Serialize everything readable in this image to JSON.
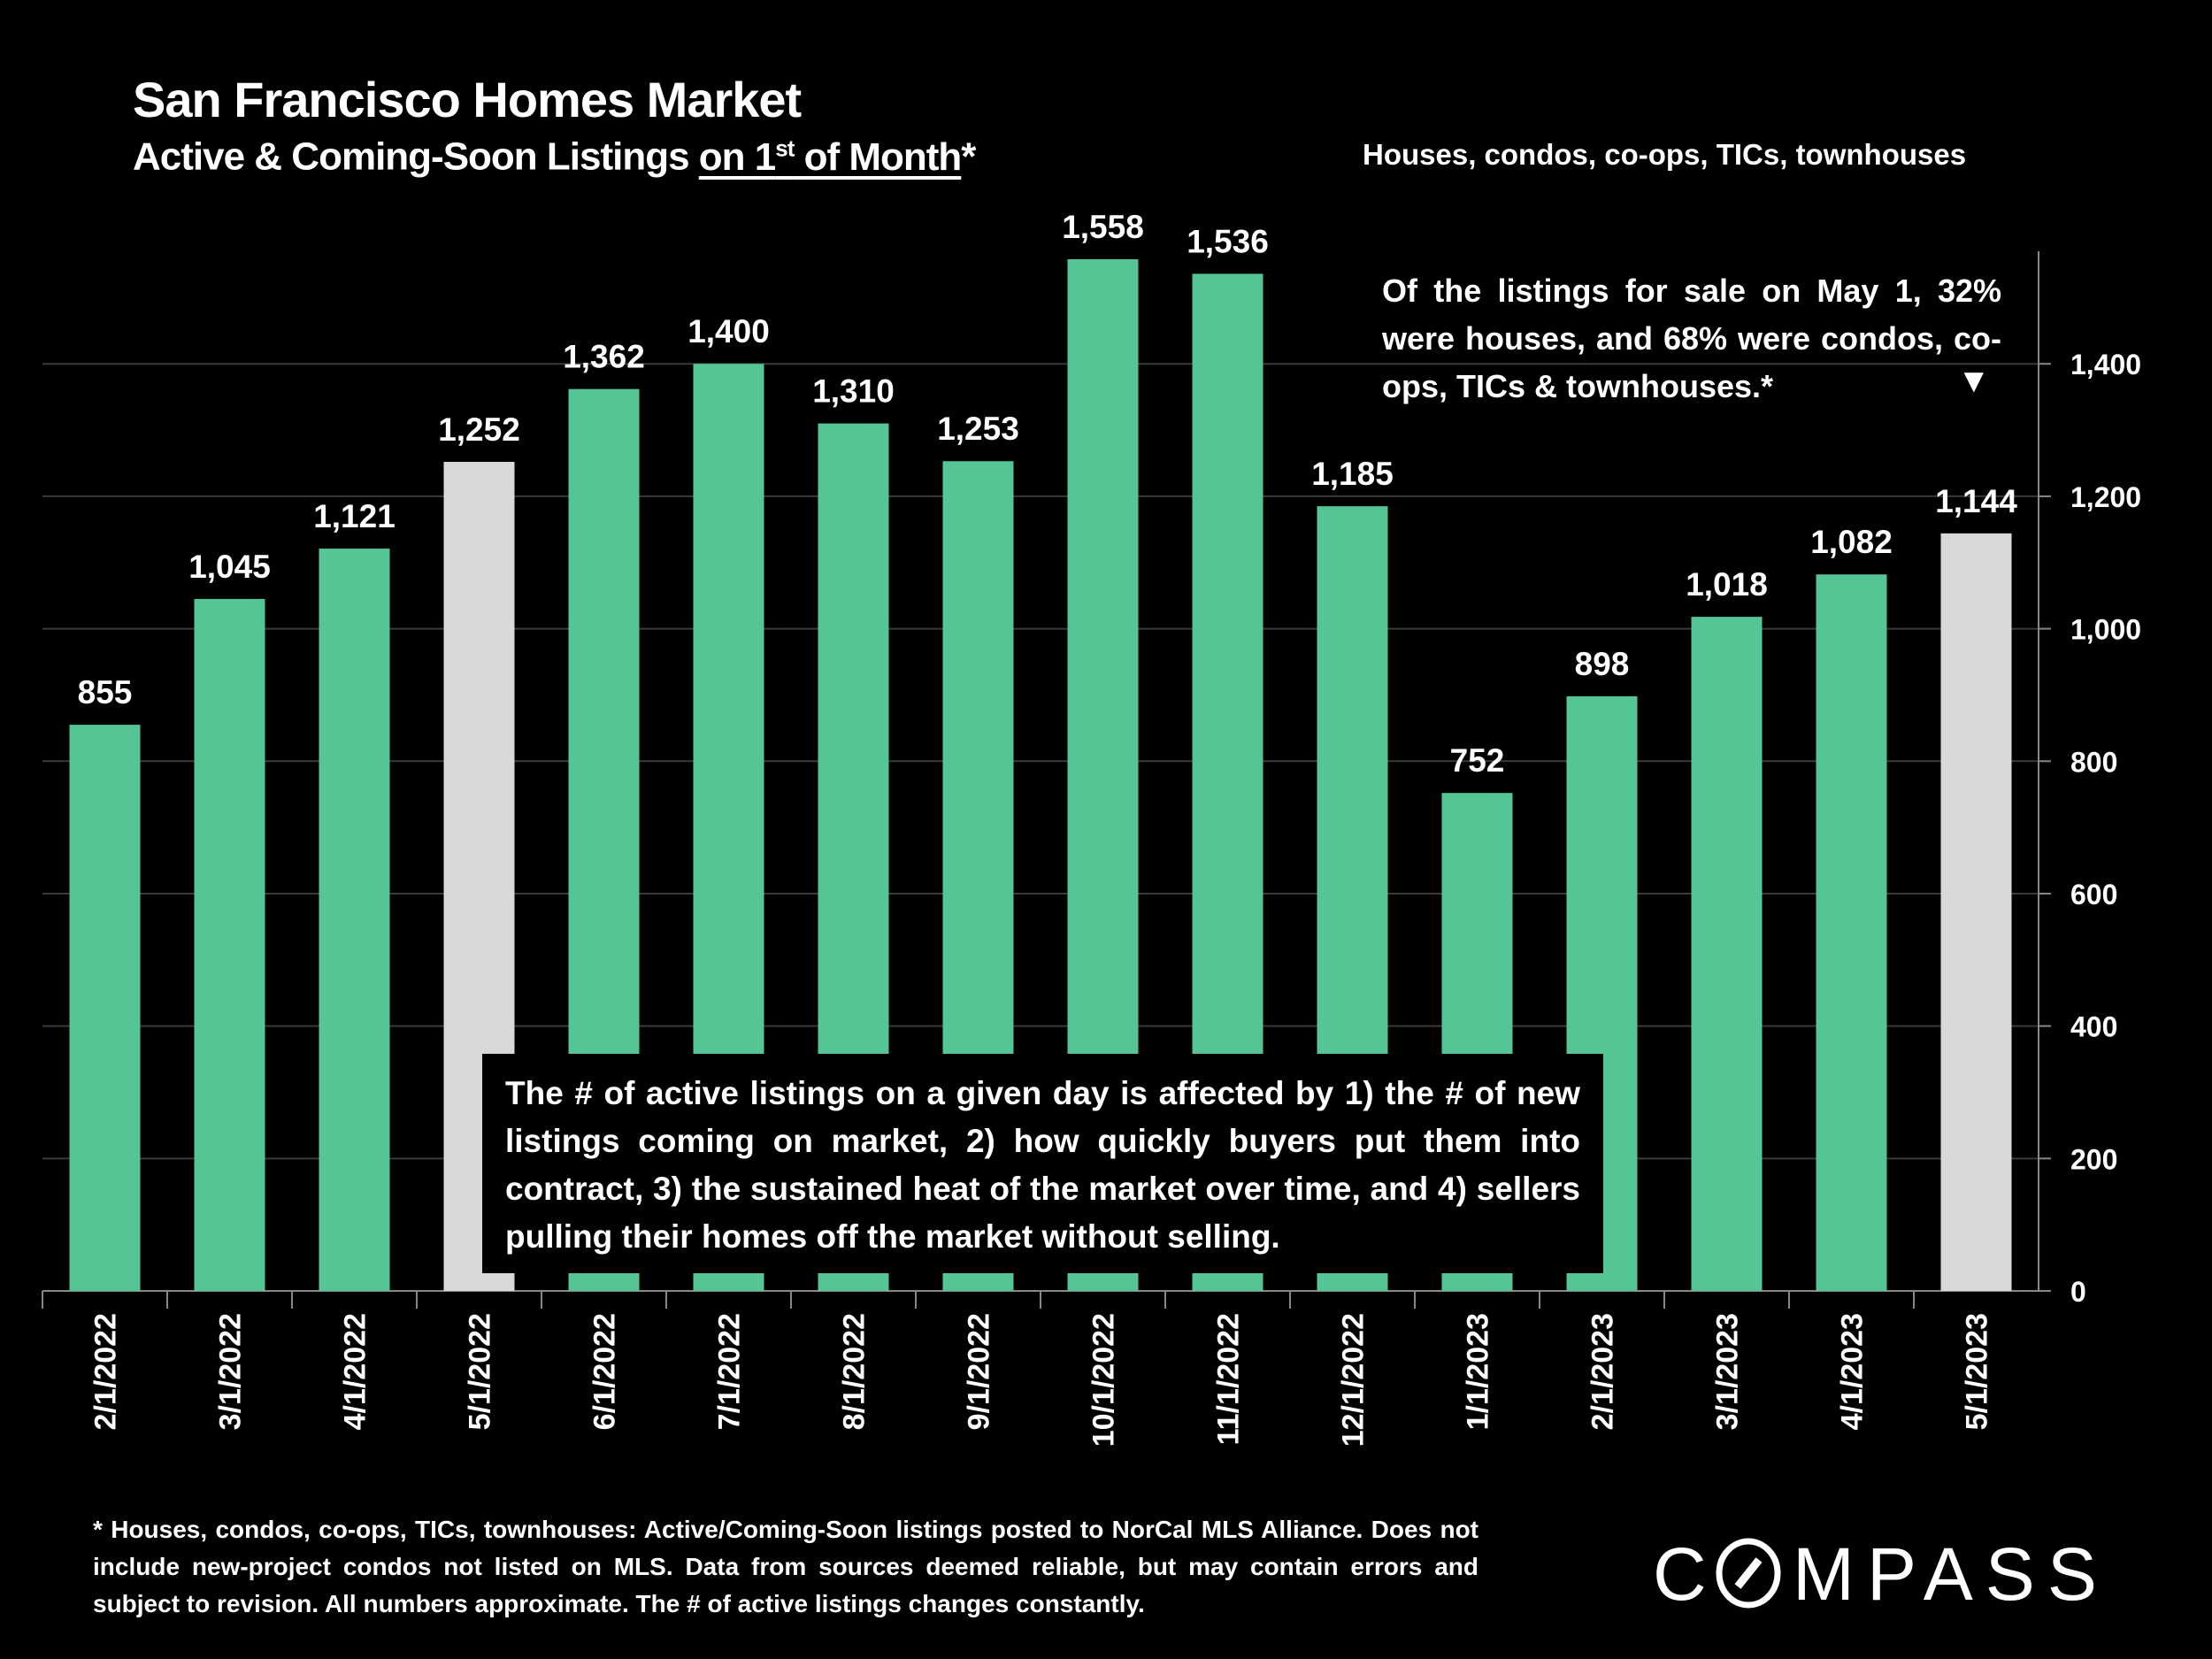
{
  "header": {
    "title": "San Francisco Homes Market",
    "subtitle_pre": "Active & Coming-Soon Listings ",
    "subtitle_u1": "on 1",
    "subtitle_sup": "st",
    "subtitle_u2": " of Month",
    "subtitle_post": "*",
    "scope": "Houses, condos, co-ops, TICs, townhouses"
  },
  "annotation": {
    "text": "Of the listings for sale on May 1, 32% were houses, and 68% were condos, co-ops, TICs & townhouses.*",
    "marker": "▼"
  },
  "callout": "The # of active listings on a given day is affected by 1) the # of new listings coming on market, 2) how quickly buyers put them into contract, 3) the sustained heat of the market over time, and 4) sellers pulling their homes off the market without selling.",
  "footnote": "* Houses, condos, co-ops, TICs, townhouses: Active/Coming-Soon listings posted to NorCal MLS Alliance. Does not include new-project condos not listed on MLS. Data from sources deemed reliable, but may contain errors and subject to revision. All numbers approximate. The # of active listings changes constantly.",
  "logo": {
    "text": "COMPASS"
  },
  "colors": {
    "bar": "#56C596",
    "highlight": "#D9D9D9",
    "grid": "#3a3a3a",
    "background": "#000000"
  },
  "chart_data": {
    "type": "bar",
    "title": "San Francisco Homes Market",
    "xlabel": "",
    "ylabel": "",
    "ylim": [
      0,
      1570
    ],
    "yticks": [
      0,
      200,
      400,
      600,
      800,
      1000,
      1200,
      1400
    ],
    "ytick_labels": [
      "0",
      "200",
      "400",
      "600",
      "800",
      "1,000",
      "1,200",
      "1,400"
    ],
    "y_axis_side": "right",
    "grid": true,
    "categories": [
      "2/1/2022",
      "3/1/2022",
      "4/1/2022",
      "5/1/2022",
      "6/1/2022",
      "7/1/2022",
      "8/1/2022",
      "9/1/2022",
      "10/1/2022",
      "11/1/2022",
      "12/1/2022",
      "1/1/2023",
      "2/1/2023",
      "3/1/2023",
      "4/1/2023",
      "5/1/2023"
    ],
    "values": [
      855,
      1045,
      1121,
      1252,
      1362,
      1400,
      1310,
      1253,
      1558,
      1536,
      1185,
      752,
      898,
      1018,
      1082,
      1144
    ],
    "value_labels": [
      "855",
      "1,045",
      "1,121",
      "1,252",
      "1,362",
      "1,400",
      "1,310",
      "1,253",
      "1,558",
      "1,536",
      "1,185",
      "752",
      "898",
      "1,018",
      "1,082",
      "1,144"
    ],
    "highlighted": [
      false,
      false,
      false,
      true,
      false,
      false,
      false,
      false,
      false,
      false,
      false,
      false,
      false,
      false,
      false,
      true
    ]
  }
}
